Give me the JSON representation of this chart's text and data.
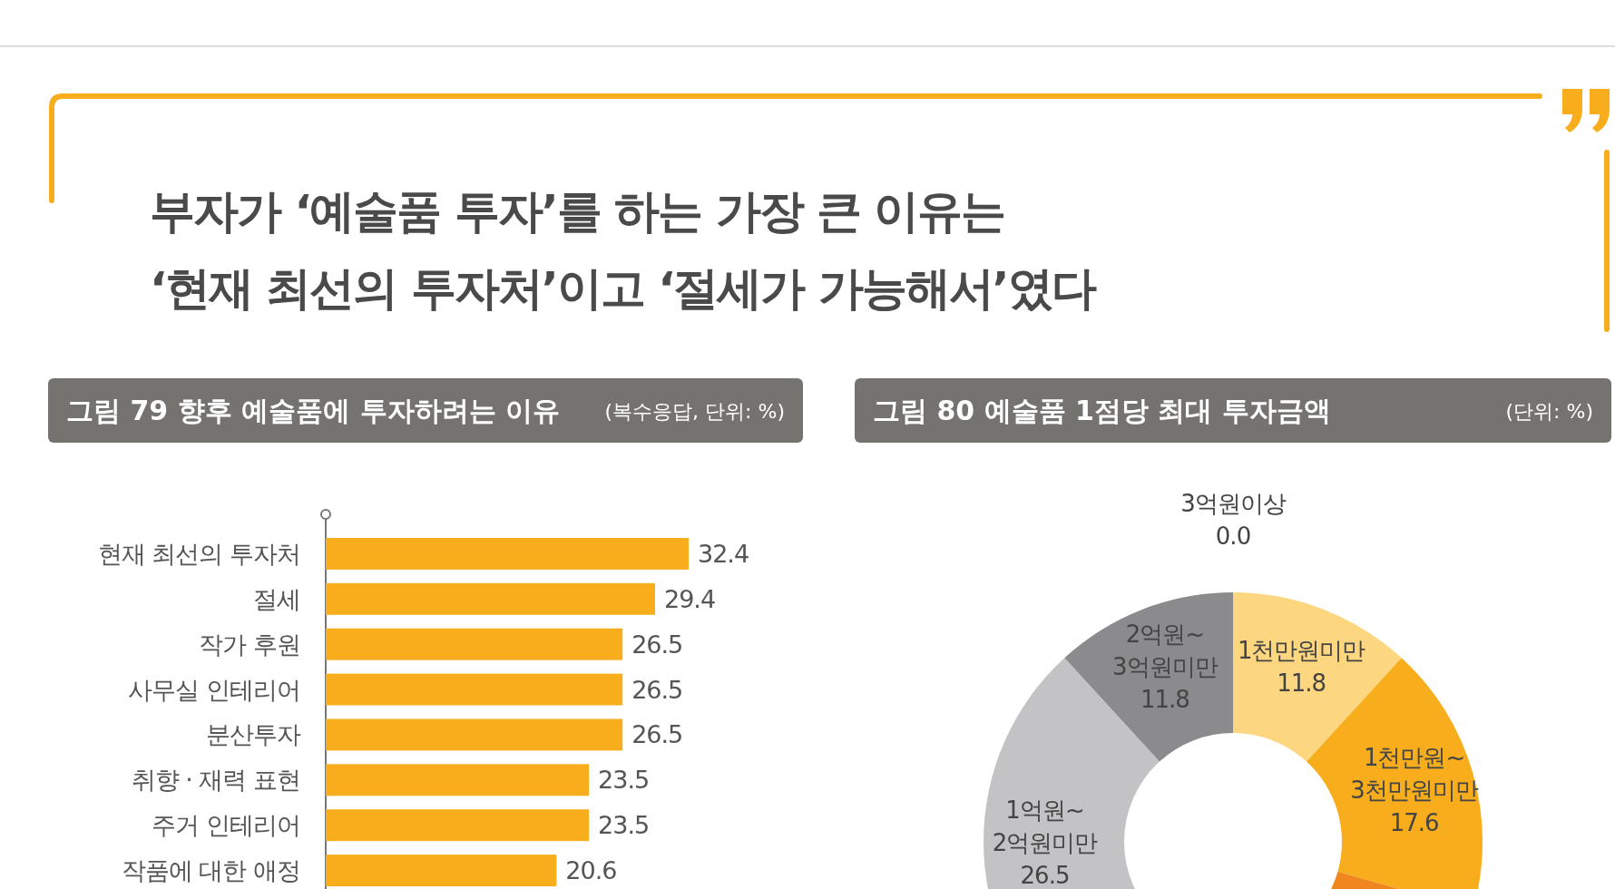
{
  "chart_data": [
    {
      "type": "bar",
      "orientation": "horizontal",
      "title": "그림 79  향후 예술품에 투자하려는 이유",
      "subtitle": "(복수응답, 단위: %)",
      "annotations": [
        "부자가 ‘예술품 투자’를 하는 가장 큰 이유는",
        "‘현재 최선의 투자처’이고 ‘절세가 가능해서’였다"
      ],
      "categories": [
        "현재 최선의 투자처",
        "절세",
        "작가 후원",
        "사무실 인테리어",
        "분산투자",
        "취향 · 재력 표현",
        "주거 인테리어",
        "작품에 대한 애정"
      ],
      "values": [
        32.4,
        29.4,
        26.5,
        26.5,
        26.5,
        23.5,
        23.5,
        20.6
      ],
      "color": "#f8ae1c",
      "data_labels": true
    },
    {
      "type": "donut",
      "title": "그림 80  예술품 1점당 최대 투자금액",
      "subtitle": "(단위: %)",
      "categories": [
        "1천만원미만",
        "1천만원~3천만원미만",
        null,
        "1억원~2억원미만",
        "2억원~3억원미만",
        "3억원이상"
      ],
      "values": [
        11.8,
        17.6,
        32.3,
        26.5,
        11.8,
        0.0
      ],
      "colors": [
        "#fdd680",
        "#f8ae1c",
        "#f0871e",
        "#c3c3c5",
        "#8b8b8d",
        "#5a5a5a"
      ],
      "value_labels": [
        "11.8",
        "17.6",
        null,
        "26.5",
        "11.8",
        "0.0"
      ]
    }
  ]
}
